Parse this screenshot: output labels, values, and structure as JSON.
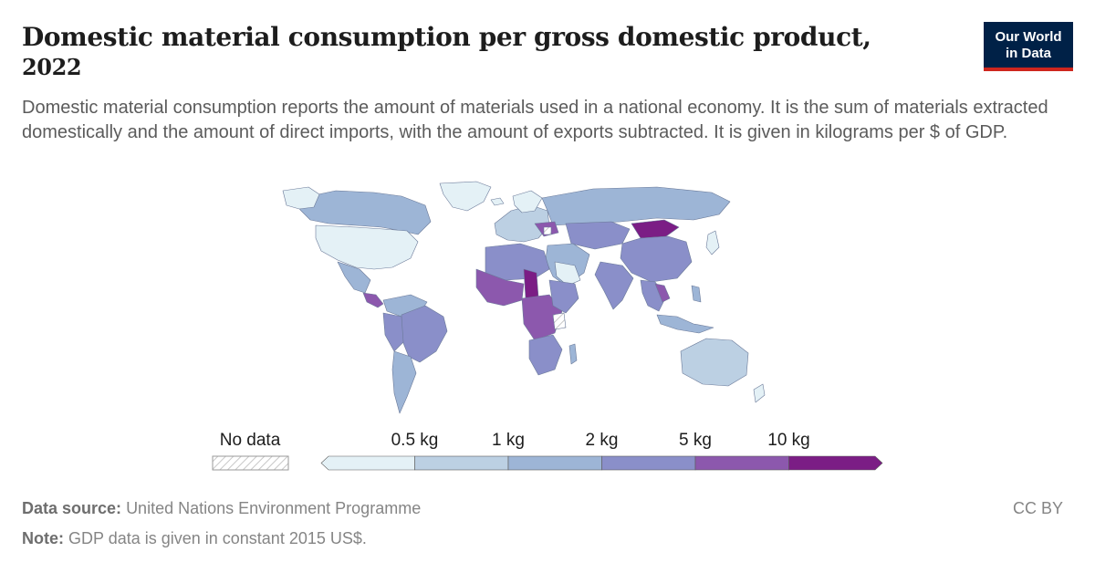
{
  "header": {
    "title": "Domestic material consumption per gross domestic product,",
    "title_year": "2022",
    "subtitle": "Domestic material consumption reports the amount of materials used in a national economy. It is the sum of materials extracted domestically and the amount of direct imports, with the amount of exports subtracted. It is given in kilograms per $ of GDP.",
    "logo_line1": "Our World",
    "logo_line2": "in Data"
  },
  "legend": {
    "no_data_label": "No data",
    "bins": [
      {
        "label": "0.5 kg",
        "color": "#e4f1f6"
      },
      {
        "label": "1 kg",
        "color": "#bcd0e3"
      },
      {
        "label": "2 kg",
        "color": "#9db5d6"
      },
      {
        "label": "5 kg",
        "color": "#8a8fc9"
      },
      {
        "label": "10 kg",
        "color": "#8c58ad"
      },
      {
        "label": "",
        "color": "#7b1d85"
      }
    ]
  },
  "colors": {
    "bin0": "#e4f1f6",
    "bin1": "#bcd0e3",
    "bin2": "#9db5d6",
    "bin3": "#8a8fc9",
    "bin4": "#8c58ad",
    "bin5": "#7b1d85",
    "border": "#6b7a99"
  },
  "footer": {
    "source_label": "Data source:",
    "source_text": "United Nations Environment Programme",
    "note_label": "Note:",
    "note_text": "GDP data is given in constant 2015 US$.",
    "license": "CC BY"
  }
}
